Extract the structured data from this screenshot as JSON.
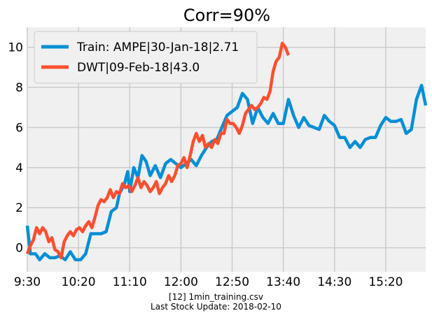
{
  "chart_data": {
    "type": "line",
    "title": "Corr=90%",
    "xlabel": "",
    "ylabel": "",
    "x_ticks": [
      "9:30",
      "10:20",
      "11:10",
      "12:00",
      "12:50",
      "13:40",
      "14:30",
      "15:20"
    ],
    "x_start": "9:30",
    "x_end": "15:59",
    "ylim": [
      -1.2,
      11
    ],
    "y_ticks": [
      0,
      2,
      4,
      6,
      8,
      10
    ],
    "grid": true,
    "legend_position": "top-left",
    "series": [
      {
        "name": "Train: AMPE|30-Jan-18|2.71",
        "color": "#008fd5",
        "points": [
          [
            "9:30",
            1.1
          ],
          [
            "9:33",
            -0.3
          ],
          [
            "9:38",
            -0.3
          ],
          [
            "9:42",
            -0.6
          ],
          [
            "9:47",
            -0.3
          ],
          [
            "9:52",
            -0.5
          ],
          [
            "9:57",
            -0.5
          ],
          [
            "10:02",
            -0.4
          ],
          [
            "10:07",
            -0.6
          ],
          [
            "10:12",
            -0.2
          ],
          [
            "10:17",
            -0.6
          ],
          [
            "10:22",
            -0.6
          ],
          [
            "10:27",
            -0.3
          ],
          [
            "10:32",
            0.7
          ],
          [
            "10:37",
            0.7
          ],
          [
            "10:42",
            0.7
          ],
          [
            "10:47",
            0.8
          ],
          [
            "10:52",
            1.8
          ],
          [
            "10:57",
            2.0
          ],
          [
            "11:00",
            2.7
          ],
          [
            "11:05",
            3.2
          ],
          [
            "11:08",
            3.8
          ],
          [
            "11:10",
            2.8
          ],
          [
            "11:14",
            4.0
          ],
          [
            "11:18",
            3.5
          ],
          [
            "11:22",
            4.6
          ],
          [
            "11:26",
            4.3
          ],
          [
            "11:30",
            3.6
          ],
          [
            "11:35",
            4.1
          ],
          [
            "11:40",
            3.5
          ],
          [
            "11:45",
            4.2
          ],
          [
            "11:50",
            4.4
          ],
          [
            "11:55",
            4.2
          ],
          [
            "12:00",
            4.0
          ],
          [
            "12:05",
            4.2
          ],
          [
            "12:10",
            4.4
          ],
          [
            "12:15",
            4.1
          ],
          [
            "12:20",
            4.6
          ],
          [
            "12:25",
            5.0
          ],
          [
            "12:30",
            5.3
          ],
          [
            "12:35",
            5.4
          ],
          [
            "12:40",
            6.0
          ],
          [
            "12:45",
            6.6
          ],
          [
            "12:50",
            6.8
          ],
          [
            "12:55",
            7.0
          ],
          [
            "13:00",
            7.7
          ],
          [
            "13:05",
            7.4
          ],
          [
            "13:10",
            6.2
          ],
          [
            "13:15",
            7.0
          ],
          [
            "13:20",
            6.5
          ],
          [
            "13:25",
            6.2
          ],
          [
            "13:30",
            6.7
          ],
          [
            "13:35",
            6.2
          ],
          [
            "13:40",
            6.2
          ],
          [
            "13:45",
            7.4
          ],
          [
            "13:50",
            6.6
          ],
          [
            "13:55",
            6.0
          ],
          [
            "14:00",
            6.5
          ],
          [
            "14:05",
            6.1
          ],
          [
            "14:10",
            6.0
          ],
          [
            "14:15",
            5.9
          ],
          [
            "14:20",
            6.6
          ],
          [
            "14:25",
            6.3
          ],
          [
            "14:30",
            6.1
          ],
          [
            "14:35",
            5.5
          ],
          [
            "14:40",
            5.5
          ],
          [
            "14:45",
            5.0
          ],
          [
            "14:50",
            5.3
          ],
          [
            "14:55",
            5.0
          ],
          [
            "15:00",
            5.4
          ],
          [
            "15:05",
            5.5
          ],
          [
            "15:10",
            5.5
          ],
          [
            "15:15",
            6.1
          ],
          [
            "15:20",
            6.5
          ],
          [
            "15:25",
            6.3
          ],
          [
            "15:30",
            6.3
          ],
          [
            "15:35",
            6.4
          ],
          [
            "15:40",
            5.7
          ],
          [
            "15:45",
            5.9
          ],
          [
            "15:50",
            7.4
          ],
          [
            "15:55",
            8.1
          ],
          [
            "15:59",
            7.1
          ]
        ]
      },
      {
        "name": "DWT|09-Feb-18|43.0",
        "color": "#fc4f30",
        "points": [
          [
            "9:30",
            -0.3
          ],
          [
            "9:33",
            0.1
          ],
          [
            "9:36",
            0.4
          ],
          [
            "9:39",
            1.0
          ],
          [
            "9:42",
            0.7
          ],
          [
            "9:45",
            1.0
          ],
          [
            "9:48",
            0.8
          ],
          [
            "9:51",
            0.3
          ],
          [
            "9:54",
            0.5
          ],
          [
            "9:57",
            -0.1
          ],
          [
            "10:00",
            -0.2
          ],
          [
            "10:03",
            -0.5
          ],
          [
            "10:06",
            0.3
          ],
          [
            "10:09",
            0.6
          ],
          [
            "10:12",
            0.8
          ],
          [
            "10:15",
            0.6
          ],
          [
            "10:18",
            0.9
          ],
          [
            "10:21",
            1.0
          ],
          [
            "10:24",
            0.8
          ],
          [
            "10:27",
            1.1
          ],
          [
            "10:30",
            1.3
          ],
          [
            "10:33",
            1.0
          ],
          [
            "10:36",
            1.5
          ],
          [
            "10:39",
            2.1
          ],
          [
            "10:42",
            2.4
          ],
          [
            "10:45",
            2.3
          ],
          [
            "10:48",
            2.5
          ],
          [
            "10:51",
            2.9
          ],
          [
            "10:54",
            2.5
          ],
          [
            "10:57",
            2.8
          ],
          [
            "11:00",
            2.7
          ],
          [
            "11:03",
            3.2
          ],
          [
            "11:06",
            3.0
          ],
          [
            "11:09",
            3.1
          ],
          [
            "11:12",
            2.8
          ],
          [
            "11:15",
            3.1
          ],
          [
            "11:18",
            3.5
          ],
          [
            "11:21",
            3.0
          ],
          [
            "11:24",
            3.3
          ],
          [
            "11:27",
            3.1
          ],
          [
            "11:30",
            2.8
          ],
          [
            "11:33",
            3.0
          ],
          [
            "11:36",
            3.3
          ],
          [
            "11:39",
            2.7
          ],
          [
            "11:42",
            3.0
          ],
          [
            "11:45",
            3.2
          ],
          [
            "11:48",
            3.6
          ],
          [
            "11:51",
            3.3
          ],
          [
            "11:54",
            3.6
          ],
          [
            "11:57",
            4.1
          ],
          [
            "12:00",
            4.2
          ],
          [
            "12:03",
            4.5
          ],
          [
            "12:06",
            4.0
          ],
          [
            "12:09",
            4.6
          ],
          [
            "12:12",
            5.3
          ],
          [
            "12:15",
            5.7
          ],
          [
            "12:18",
            5.3
          ],
          [
            "12:21",
            5.6
          ],
          [
            "12:24",
            5.0
          ],
          [
            "12:27",
            5.2
          ],
          [
            "12:30",
            5.0
          ],
          [
            "12:33",
            5.4
          ],
          [
            "12:36",
            5.2
          ],
          [
            "12:39",
            5.7
          ],
          [
            "12:42",
            5.7
          ],
          [
            "12:45",
            6.4
          ],
          [
            "12:48",
            6.2
          ],
          [
            "12:51",
            6.2
          ],
          [
            "12:54",
            6.0
          ],
          [
            "12:57",
            5.7
          ],
          [
            "13:00",
            6.1
          ],
          [
            "13:03",
            6.7
          ],
          [
            "13:06",
            6.9
          ],
          [
            "13:09",
            7.1
          ],
          [
            "13:12",
            6.9
          ],
          [
            "13:15",
            7.0
          ],
          [
            "13:18",
            7.2
          ],
          [
            "13:21",
            7.5
          ],
          [
            "13:24",
            7.4
          ],
          [
            "13:27",
            7.8
          ],
          [
            "13:30",
            8.8
          ],
          [
            "13:33",
            9.3
          ],
          [
            "13:36",
            9.5
          ],
          [
            "13:39",
            10.2
          ],
          [
            "13:42",
            10.0
          ],
          [
            "13:45",
            9.6
          ]
        ]
      }
    ]
  },
  "caption": {
    "line1": "[12] 1min_training.csv",
    "line2": "Last Stock Update: 2018-02-10"
  }
}
